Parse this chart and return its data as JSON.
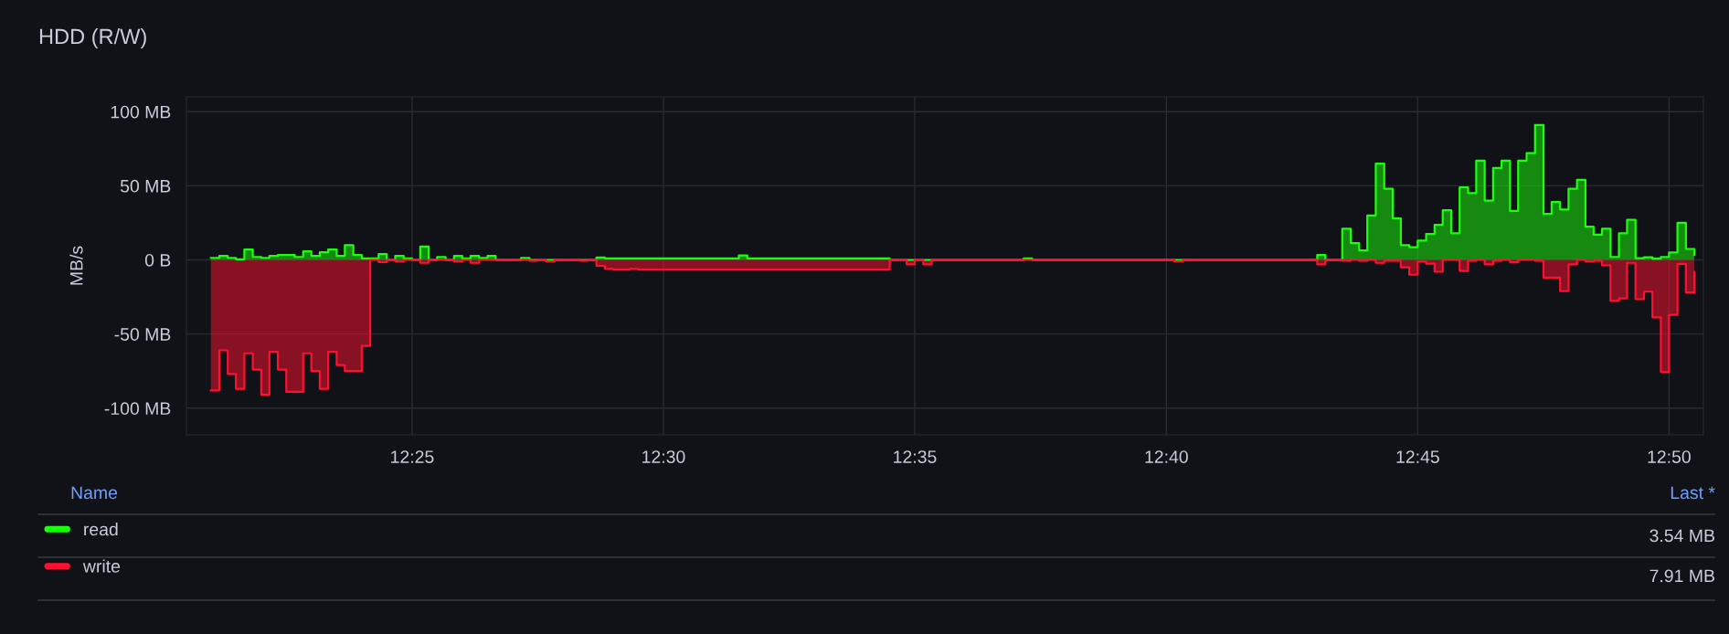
{
  "chart_data": {
    "type": "step",
    "title": "HDD (R/W)",
    "ylabel": "MB/s",
    "xlim": [
      12.3419,
      12.8447
    ],
    "xticks": [
      {
        "value": 12.4167,
        "label": "12:25"
      },
      {
        "value": 12.5,
        "label": "12:30"
      },
      {
        "value": 12.5833,
        "label": "12:35"
      },
      {
        "value": 12.6667,
        "label": "12:40"
      },
      {
        "value": 12.75,
        "label": "12:45"
      },
      {
        "value": 12.8333,
        "label": "12:50"
      }
    ],
    "ylim": [
      -118,
      110
    ],
    "yticks": [
      {
        "value": -100,
        "label": "-100 MB"
      },
      {
        "value": -50,
        "label": "-50 MB"
      },
      {
        "value": 0,
        "label": "0 B"
      },
      {
        "value": 50,
        "label": "50 MB"
      },
      {
        "value": 100,
        "label": "100 MB"
      }
    ],
    "grid": true,
    "legend": "bottom",
    "annotations": [
      "Name",
      "Last *",
      "3.54 MB",
      "7.91 MB"
    ],
    "series": [
      {
        "name": "read",
        "color": "#1aff0a",
        "x": [
          12.35,
          12.3528,
          12.3556,
          12.3583,
          12.3611,
          12.3639,
          12.3667,
          12.3694,
          12.3722,
          12.3778,
          12.3806,
          12.3833,
          12.3861,
          12.3889,
          12.3917,
          12.3944,
          12.3972,
          12.4,
          12.4056,
          12.4083,
          12.4111,
          12.4139,
          12.4167,
          12.4194,
          12.4222,
          12.425,
          12.4278,
          12.4306,
          12.4333,
          12.4361,
          12.4389,
          12.4417,
          12.4444,
          12.4528,
          12.4556,
          12.4778,
          12.4806,
          12.525,
          12.5278,
          12.575,
          12.6194,
          12.6222,
          12.7167,
          12.7194,
          12.725,
          12.7278,
          12.7306,
          12.7333,
          12.7361,
          12.7389,
          12.7417,
          12.7444,
          12.7472,
          12.75,
          12.7528,
          12.7556,
          12.7583,
          12.7611,
          12.7639,
          12.7667,
          12.7694,
          12.7722,
          12.775,
          12.7778,
          12.7806,
          12.7833,
          12.7861,
          12.7889,
          12.7917,
          12.7944,
          12.7972,
          12.8,
          12.8028,
          12.8056,
          12.8083,
          12.8111,
          12.8139,
          12.8167,
          12.8194,
          12.8222,
          12.825,
          12.8278,
          12.8306,
          12.8333,
          12.8361,
          12.8389,
          12.8417
        ],
        "values": [
          1.4,
          2.7,
          1.4,
          0.4,
          7,
          2,
          1.4,
          2.7,
          3.3,
          2,
          5.8,
          2.7,
          5.1,
          7,
          2.7,
          10,
          3.3,
          1,
          4,
          0,
          2.7,
          1,
          0,
          9,
          0,
          2,
          0,
          2.7,
          1,
          2.7,
          1.4,
          2.7,
          0,
          1.4,
          0,
          1.6,
          1,
          3,
          1,
          0,
          1,
          0,
          3.3,
          0,
          21,
          11.3,
          6.4,
          30,
          65,
          48,
          28,
          10,
          8.6,
          13,
          17.5,
          23.7,
          33.5,
          18,
          49,
          45,
          67,
          40,
          62,
          67,
          33,
          67,
          72,
          91,
          31,
          39,
          34,
          48,
          54,
          22.4,
          17,
          21,
          2,
          18,
          27,
          1.2,
          1.8,
          0.8,
          2,
          5,
          25,
          7.4,
          3.5
        ]
      },
      {
        "name": "write",
        "color": "#ff1030",
        "x": [
          12.35,
          12.3528,
          12.3556,
          12.3583,
          12.3611,
          12.3639,
          12.3667,
          12.3694,
          12.3722,
          12.375,
          12.3806,
          12.3833,
          12.3861,
          12.3889,
          12.3917,
          12.3944,
          12.4,
          12.4028,
          12.4056,
          12.4083,
          12.4111,
          12.4139,
          12.4194,
          12.4222,
          12.4306,
          12.4333,
          12.4361,
          12.4389,
          12.4556,
          12.4583,
          12.4611,
          12.4639,
          12.4722,
          12.475,
          12.4778,
          12.4806,
          12.4833,
          12.4889,
          12.4917,
          12.575,
          12.5806,
          12.5833,
          12.5861,
          12.5889,
          12.6694,
          12.6722,
          12.7167,
          12.7194,
          12.725,
          12.7278,
          12.7306,
          12.7333,
          12.7361,
          12.7389,
          12.7444,
          12.7472,
          12.75,
          12.7528,
          12.7556,
          12.7583,
          12.7639,
          12.7667,
          12.7694,
          12.7722,
          12.775,
          12.7778,
          12.7806,
          12.7833,
          12.7889,
          12.7917,
          12.7972,
          12.8,
          12.8028,
          12.8056,
          12.8083,
          12.8111,
          12.8139,
          12.8167,
          12.8194,
          12.8222,
          12.825,
          12.8278,
          12.8306,
          12.8333,
          12.8361,
          12.8389,
          12.8417
        ],
        "values": [
          -88,
          -61,
          -77,
          -87,
          -63,
          -74,
          -91,
          -62,
          -74,
          -89,
          -63,
          -75,
          -87,
          -62,
          -71,
          -75,
          -58,
          0,
          -1.5,
          0,
          -1,
          0,
          -2,
          0,
          -1,
          0,
          -2,
          0,
          -0.5,
          0,
          -1,
          0,
          -0.5,
          0,
          -4,
          -6,
          -6.5,
          -6,
          -6.5,
          0,
          -3,
          0,
          -3,
          0,
          -1,
          0,
          -3,
          0,
          -0.6,
          0,
          -0.6,
          0,
          -2,
          -0.6,
          -5,
          -10,
          -1.2,
          -2.5,
          -8,
          0,
          -7.4,
          -0.6,
          0,
          -3,
          -0.6,
          0,
          -1.6,
          0,
          -0.6,
          -12,
          -21,
          -3,
          0,
          -1,
          -0.6,
          -3.7,
          -27.6,
          -26,
          -2,
          -26.5,
          -21.4,
          -38.7,
          -75.7,
          -37,
          -2.7,
          -22,
          -8
        ]
      }
    ]
  }
}
